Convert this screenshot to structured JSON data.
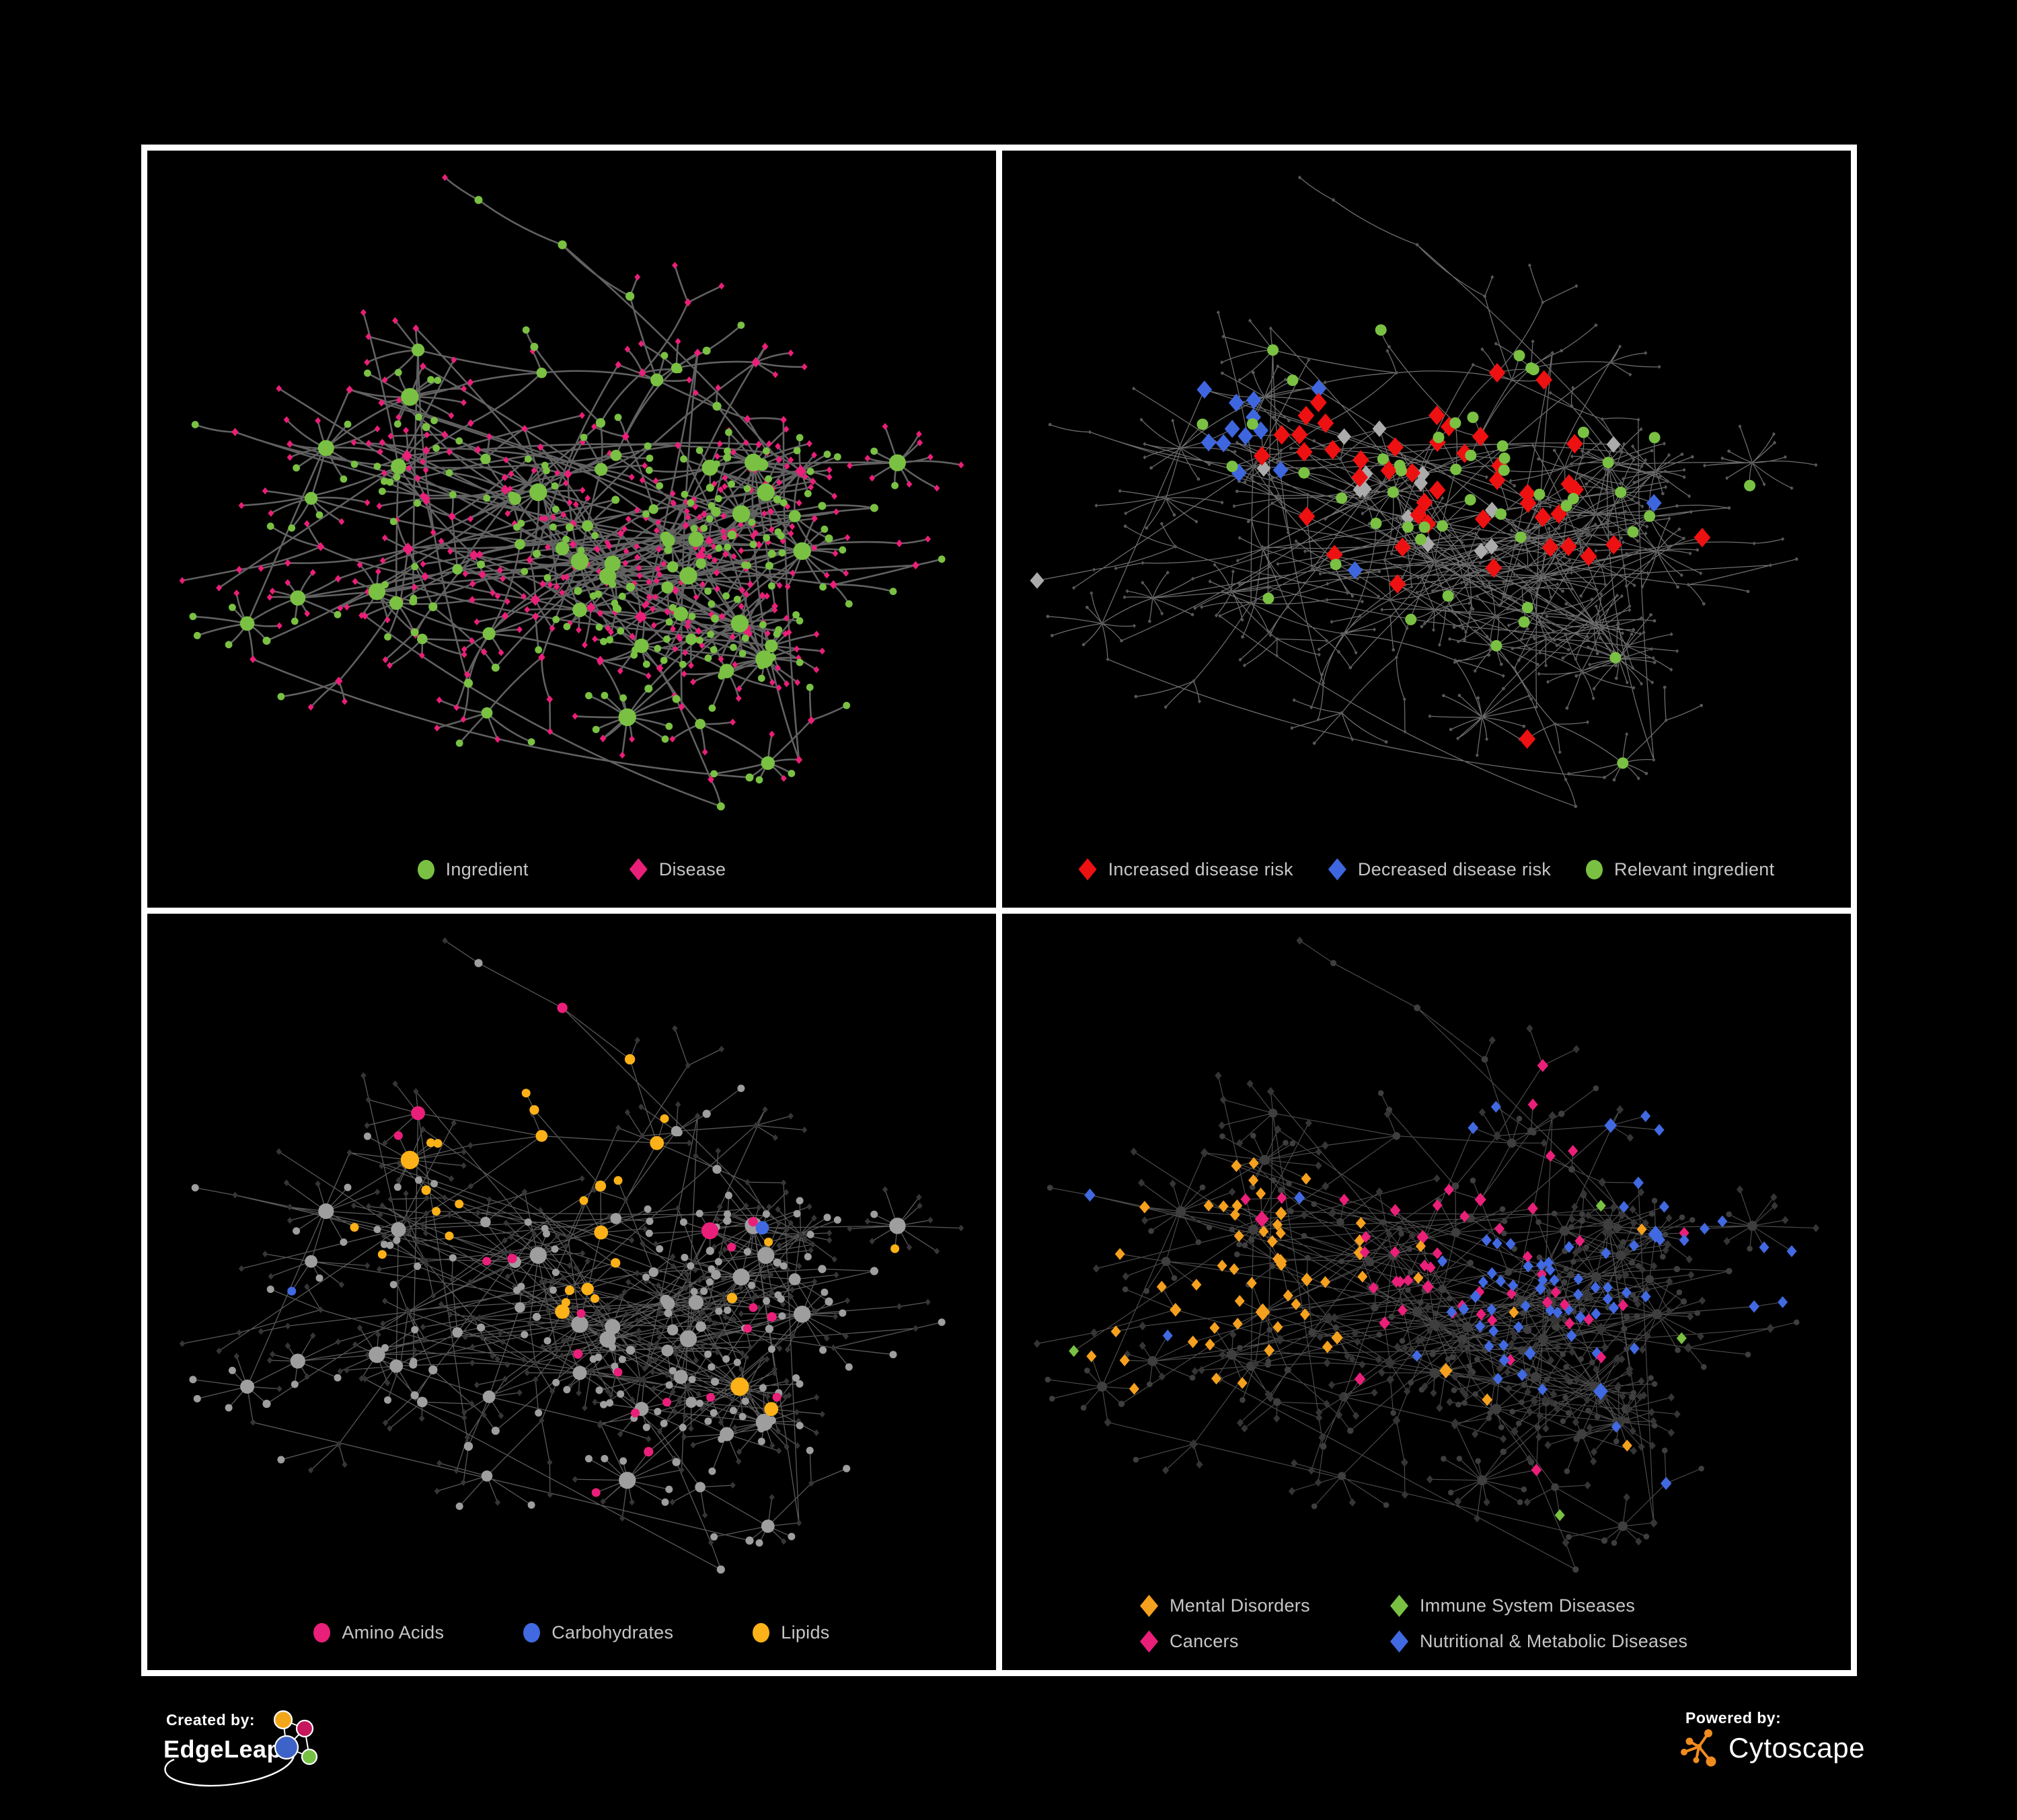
{
  "figure": {
    "background_color": "#000000",
    "frame_color": "#ffffff",
    "legend_text_color": "#c6c6c6"
  },
  "network": {
    "seed": 1337,
    "skeleton_nodes": 300,
    "total_nodes": 680,
    "extra_edges": 50
  },
  "panels": [
    {
      "id": "ingredient-disease",
      "edge_color": "#6c6c6c",
      "legend": [
        {
          "label": "Ingredient",
          "shape": "circle",
          "color": "#7AC143"
        },
        {
          "label": "Disease",
          "shape": "diamond",
          "color": "#EA1F79"
        }
      ]
    },
    {
      "id": "disease-risk",
      "edge_color": "#828282",
      "muted_color": "#585858",
      "neutral_diamond_color": "#ABABAB",
      "legend": [
        {
          "label": "Increased disease risk",
          "shape": "diamond",
          "color": "#EE1111"
        },
        {
          "label": "Decreased disease risk",
          "shape": "diamond",
          "color": "#3E66DE"
        },
        {
          "label": "Relevant ingredient",
          "shape": "circle",
          "color": "#7AC143"
        }
      ]
    },
    {
      "id": "nutrient-categories",
      "edge_color": "#8f8f8f",
      "muted_diamond_color": "#363636",
      "muted_circle_color": "#9e9e9e",
      "legend": [
        {
          "label": "Amino Acids",
          "shape": "circle",
          "color": "#EA1F79"
        },
        {
          "label": "Carbohydrates",
          "shape": "circle",
          "color": "#4169E1"
        },
        {
          "label": "Lipids",
          "shape": "circle",
          "color": "#FBB117"
        }
      ]
    },
    {
      "id": "disease-categories",
      "edge_color": "#7f7f7f",
      "muted_diamond_color": "#353535",
      "muted_circle_color": "#3e3e3e",
      "legend": [
        {
          "label": "Mental Disorders",
          "shape": "diamond",
          "color": "#F5A01E"
        },
        {
          "label": "Immune System Diseases",
          "shape": "diamond",
          "color": "#7AC143"
        },
        {
          "label": "Cancers",
          "shape": "diamond",
          "color": "#EA1F79"
        },
        {
          "label": "Nutritional & Metabolic Diseases",
          "shape": "diamond",
          "color": "#4169E1"
        }
      ]
    }
  ],
  "branding": {
    "created_by_label": "Created by:",
    "created_by_name": "EdgeLeap",
    "powered_by_label": "Powered by:",
    "powered_by_name": "Cytoscape",
    "cytoscape_orange": "#EF8C1F",
    "edgeleap_logo_colors": [
      "#F2A71B",
      "#C4175C",
      "#3E63C8",
      "#76C043"
    ]
  }
}
